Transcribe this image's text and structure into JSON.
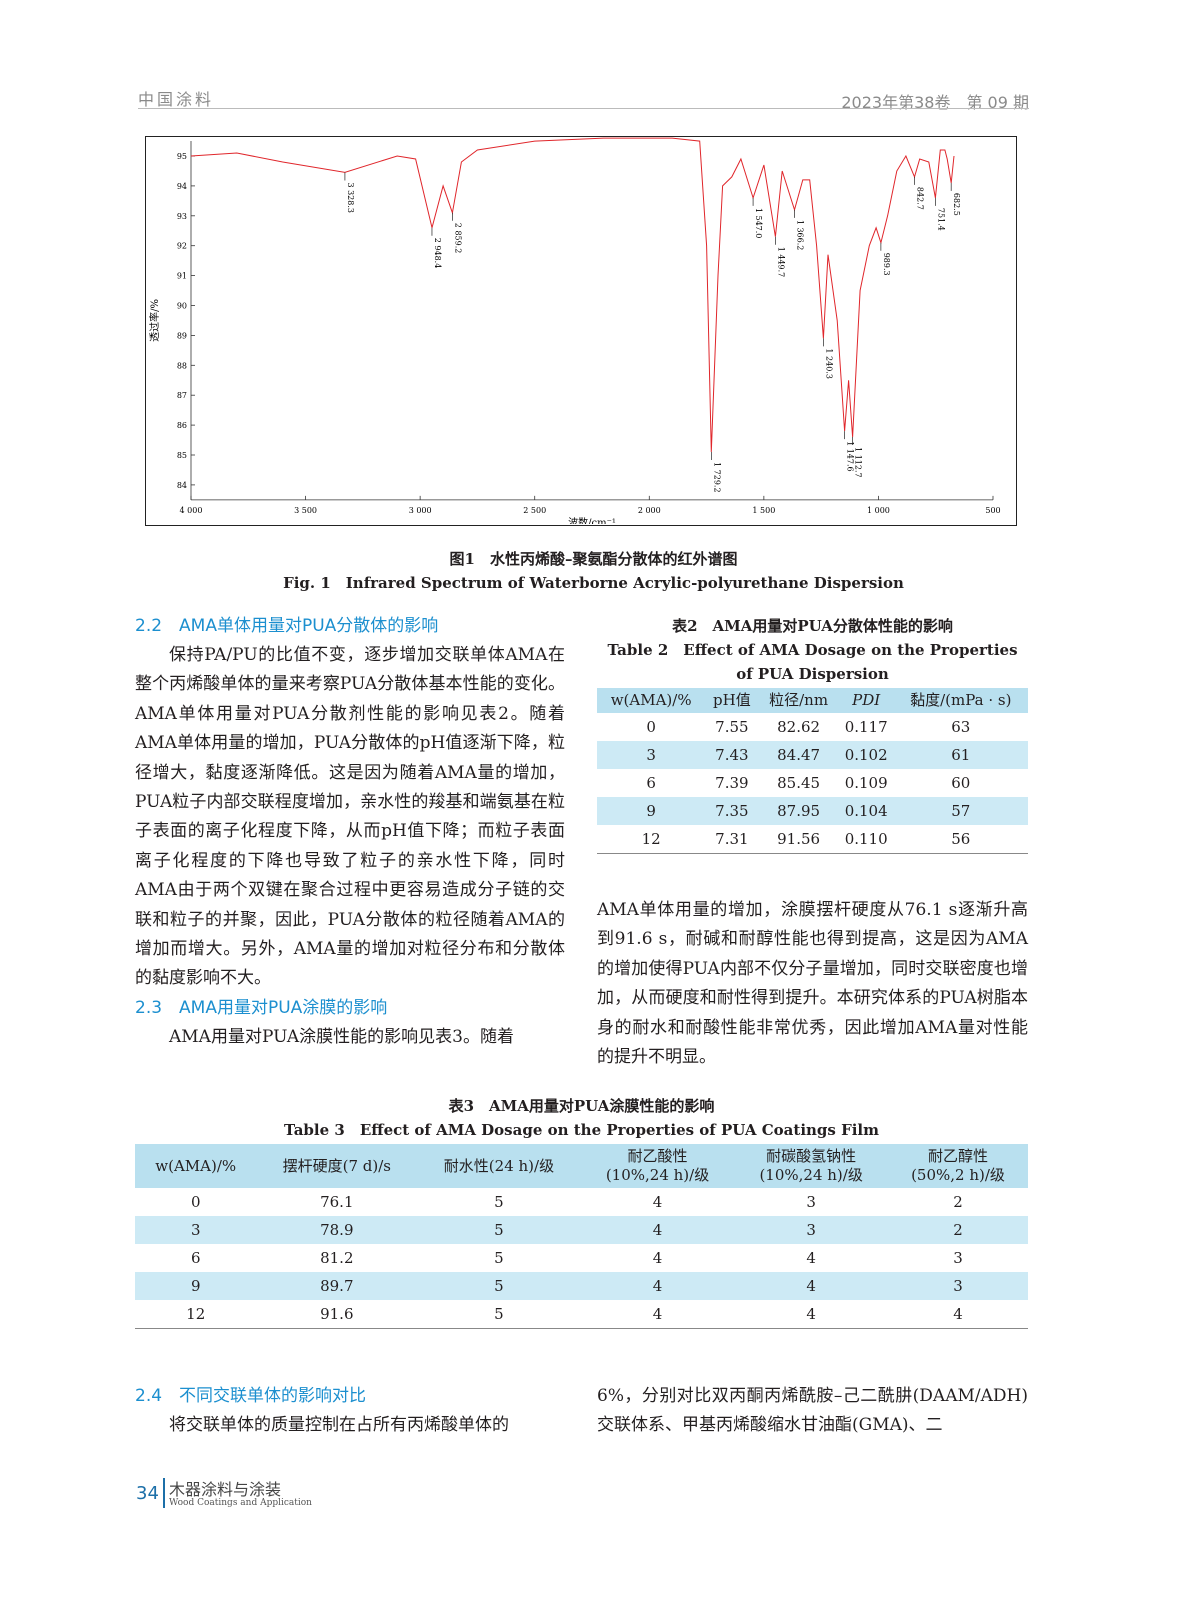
{
  "header": {
    "journal": "中国涂料",
    "issue": "2023年第38卷　第 09 期"
  },
  "figure1": {
    "caption_cn": "图1　水性丙烯酸–聚氨酯分散体的红外谱图",
    "caption_en": "Fig. 1　Infrared Spectrum of Waterborne Acrylic-polyurethane Dispersion"
  },
  "chart_data": {
    "type": "line",
    "xlabel": "波数/cm⁻¹",
    "ylabel": "透过率/%",
    "xlim": [
      4000,
      500
    ],
    "ylim": [
      83.5,
      95.5
    ],
    "x_reversed": true,
    "xticks": [
      4000,
      3500,
      3000,
      2500,
      2000,
      1500,
      1000,
      500
    ],
    "xtick_labels": [
      "4 000",
      "3 500",
      "3 000",
      "2 500",
      "2 000",
      "1 500",
      "1 000",
      "500"
    ],
    "yticks": [
      84,
      85,
      86,
      87,
      88,
      89,
      90,
      91,
      92,
      93,
      94,
      95
    ],
    "line_color": "#e0262b",
    "x": [
      4000,
      3800,
      3600,
      3328.3,
      3100,
      3020,
      2948.4,
      2900,
      2859.2,
      2820,
      2750,
      2500,
      2200,
      1900,
      1780,
      1750,
      1729.2,
      1700,
      1680,
      1640,
      1600,
      1547.0,
      1500,
      1449.7,
      1420,
      1366.2,
      1330,
      1300,
      1270,
      1240.3,
      1220,
      1180,
      1147.6,
      1130,
      1112.7,
      1080,
      1040,
      1010,
      989.3,
      960,
      920,
      880,
      842.7,
      820,
      780,
      751.4,
      730,
      710,
      700,
      682.5,
      670
    ],
    "y": [
      95.0,
      95.1,
      94.8,
      94.45,
      95.0,
      94.9,
      92.6,
      94.0,
      93.1,
      94.8,
      95.2,
      95.5,
      95.6,
      95.6,
      95.5,
      92.0,
      85.1,
      91.0,
      94.0,
      94.3,
      94.9,
      93.6,
      94.7,
      92.3,
      94.5,
      93.2,
      94.2,
      94.2,
      92.0,
      88.9,
      91.7,
      89.5,
      85.8,
      87.5,
      85.6,
      90.5,
      92.0,
      92.6,
      92.1,
      93.0,
      94.5,
      95.0,
      94.3,
      94.9,
      94.8,
      93.6,
      95.2,
      95.2,
      94.9,
      94.1,
      95.0
    ],
    "peaks": [
      {
        "x": 3328.3,
        "y": 94.45,
        "label": "3 328.3"
      },
      {
        "x": 2948.4,
        "y": 92.6,
        "label": "2 948.4"
      },
      {
        "x": 2859.2,
        "y": 93.1,
        "label": "2 859.2"
      },
      {
        "x": 1729.2,
        "y": 85.1,
        "label": "1 729.2"
      },
      {
        "x": 1547.0,
        "y": 93.6,
        "label": "1 547.0"
      },
      {
        "x": 1449.7,
        "y": 92.3,
        "label": "1 449.7"
      },
      {
        "x": 1366.2,
        "y": 93.2,
        "label": "1 366.2"
      },
      {
        "x": 1240.3,
        "y": 88.9,
        "label": "1 240.3"
      },
      {
        "x": 1147.6,
        "y": 85.8,
        "label": "1 147.6"
      },
      {
        "x": 1112.7,
        "y": 85.6,
        "label": "1 112.7"
      },
      {
        "x": 989.3,
        "y": 92.1,
        "label": "989.3"
      },
      {
        "x": 842.7,
        "y": 94.3,
        "label": "842.7"
      },
      {
        "x": 751.4,
        "y": 93.6,
        "label": "751.4"
      },
      {
        "x": 682.5,
        "y": 94.1,
        "label": "682.5"
      }
    ]
  },
  "sec22": {
    "title": "2.2　AMA单体用量对PUA分散体的影响",
    "body": "保持PA/PU的比值不变，逐步增加交联单体AMA在整个丙烯酸单体的量来考察PUA分散体基本性能的变化。AMA单体用量对PUA分散剂性能的影响见表2。随着AMA单体用量的增加，PUA分散体的pH值逐渐下降，粒径增大，黏度逐渐降低。这是因为随着AMA量的增加，PUA粒子内部交联程度增加，亲水性的羧基和端氨基在粒子表面的离子化程度下降，从而pH值下降；而粒子表面离子化程度的下降也导致了粒子的亲水性下降，同时AMA由于两个双键在聚合过程中更容易造成分子链的交联和粒子的并聚，因此，PUA分散体的粒径随着AMA的增加而增大。另外，AMA量的增加对粒径分布和分散体的黏度影响不大。"
  },
  "sec23": {
    "title": "2.3　AMA用量对PUA涂膜的影响",
    "body": "AMA用量对PUA涂膜性能的影响见表3。随着",
    "cont": "AMA单体用量的增加，涂膜摆杆硬度从76.1 s逐渐升高到91.6 s，耐碱和耐醇性能也得到提高，这是因为AMA的增加使得PUA内部不仅分子量增加，同时交联密度也增加，从而硬度和耐性得到提升。本研究体系的PUA树脂本身的耐水和耐酸性能非常优秀，因此增加AMA量对性能的提升不明显。"
  },
  "table2": {
    "caption_cn": "表2　AMA用量对PUA分散体性能的影响",
    "caption_en": "Table 2　Effect of AMA Dosage on the Properties of PUA Dispersion",
    "headers": [
      "w(AMA)/%",
      "pH值",
      "粒径/nm",
      "PDI",
      "黏度/(mPa · s)"
    ],
    "rows": [
      [
        "0",
        "7.55",
        "82.62",
        "0.117",
        "63"
      ],
      [
        "3",
        "7.43",
        "84.47",
        "0.102",
        "61"
      ],
      [
        "6",
        "7.39",
        "85.45",
        "0.109",
        "60"
      ],
      [
        "9",
        "7.35",
        "87.95",
        "0.104",
        "57"
      ],
      [
        "12",
        "7.31",
        "91.56",
        "0.110",
        "56"
      ]
    ]
  },
  "table3": {
    "caption_cn": "表3　AMA用量对PUA涂膜性能的影响",
    "caption_en": "Table 3　Effect of AMA Dosage on the Properties of PUA Coatings Film",
    "headers": [
      [
        "w(AMA)/%",
        ""
      ],
      [
        "摆杆硬度(7 d)/s",
        ""
      ],
      [
        "耐水性(24 h)/级",
        ""
      ],
      [
        "耐乙酸性",
        "(10%,24 h)/级"
      ],
      [
        "耐碳酸氢钠性",
        "(10%,24 h)/级"
      ],
      [
        "耐乙醇性",
        "(50%,2 h)/级"
      ]
    ],
    "rows": [
      [
        "0",
        "76.1",
        "5",
        "4",
        "3",
        "2"
      ],
      [
        "3",
        "78.9",
        "5",
        "4",
        "3",
        "2"
      ],
      [
        "6",
        "81.2",
        "5",
        "4",
        "4",
        "3"
      ],
      [
        "9",
        "89.7",
        "5",
        "4",
        "4",
        "3"
      ],
      [
        "12",
        "91.6",
        "5",
        "4",
        "4",
        "4"
      ]
    ]
  },
  "sec24": {
    "title": "2.4　不同交联单体的影响对比",
    "body": "将交联单体的质量控制在占所有丙烯酸单体的",
    "cont": "6%，分别对比双丙酮丙烯酰胺–己二酰肼(DAAM/ADH)交联体系、甲基丙烯酸缩水甘油酯(GMA)、二"
  },
  "footer": {
    "page": "34",
    "journal_cn": "木器涂料与涂装",
    "journal_en": "Wood Coatings and Application"
  }
}
